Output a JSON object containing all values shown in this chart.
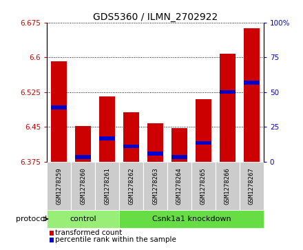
{
  "title": "GDS5360 / ILMN_2702922",
  "samples": [
    "GSM1278259",
    "GSM1278260",
    "GSM1278261",
    "GSM1278262",
    "GSM1278263",
    "GSM1278264",
    "GSM1278265",
    "GSM1278266",
    "GSM1278267"
  ],
  "red_bar_tops": [
    6.592,
    6.451,
    6.516,
    6.482,
    6.457,
    6.447,
    6.51,
    6.608,
    6.662
  ],
  "blue_positions": [
    6.492,
    6.385,
    6.425,
    6.408,
    6.392,
    6.385,
    6.415,
    6.525,
    6.545
  ],
  "bar_base": 6.375,
  "ylim_left": [
    6.375,
    6.675
  ],
  "yticks_left": [
    6.375,
    6.45,
    6.525,
    6.6,
    6.675
  ],
  "ytick_labels_left": [
    "6.375",
    "6.45",
    "6.525",
    "6.6",
    "6.675"
  ],
  "ylim_right": [
    0,
    100
  ],
  "yticks_right": [
    0,
    25,
    50,
    75,
    100
  ],
  "ytick_labels_right": [
    "0",
    "25",
    "50",
    "75",
    "100%"
  ],
  "protocol_groups": [
    {
      "label": "control",
      "start": 0,
      "end": 3
    },
    {
      "label": "Csnk1a1 knockdown",
      "start": 3,
      "end": 9
    }
  ],
  "protocol_label": "protocol",
  "bar_color_red": "#cc0000",
  "bar_color_blue": "#0000cc",
  "bar_width": 0.65,
  "bg_color_control": "#99ee77",
  "bg_color_knockdown": "#66dd44",
  "bg_color_xlabels": "#cccccc",
  "legend_red_label": "transformed count",
  "legend_blue_label": "percentile rank within the sample",
  "title_fontsize": 10,
  "tick_fontsize": 7.5,
  "sample_fontsize": 6.5,
  "legend_fontsize": 7.5
}
